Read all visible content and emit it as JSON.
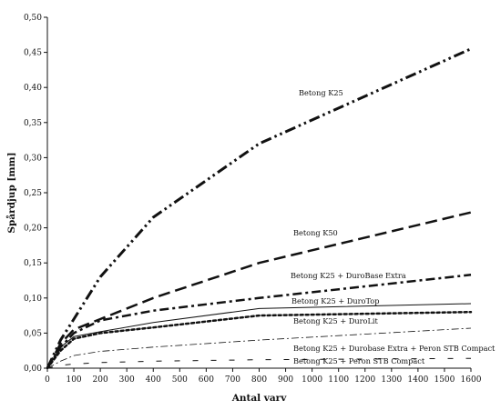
{
  "chart_data": {
    "type": "line",
    "title": "",
    "xlabel": "Antal varv",
    "ylabel": "Spårdjup [mm]",
    "xlim": [
      0,
      1600
    ],
    "ylim": [
      0,
      0.5
    ],
    "x_ticks": [
      "0",
      "100",
      "200",
      "300",
      "400",
      "500",
      "600",
      "700",
      "800",
      "900",
      "1000",
      "1100",
      "1200",
      "1300",
      "1400",
      "1500",
      "1600"
    ],
    "y_ticks": [
      "0,00",
      "0,05",
      "0,10",
      "0,15",
      "0,20",
      "0,25",
      "0,30",
      "0,35",
      "0,40",
      "0,45",
      "0,50"
    ],
    "grid": false,
    "legend": "inline labels",
    "series": [
      {
        "name": "Betong K25",
        "style": "dash-dot-dot",
        "width": 3,
        "x": [
          0,
          50,
          100,
          200,
          400,
          800,
          1600
        ],
        "y": [
          0,
          0.04,
          0.07,
          0.13,
          0.215,
          0.32,
          0.455
        ]
      },
      {
        "name": "Betong K50",
        "style": "long-dash",
        "width": 2.5,
        "x": [
          0,
          50,
          100,
          200,
          400,
          800,
          1600
        ],
        "y": [
          0,
          0.035,
          0.055,
          0.07,
          0.1,
          0.15,
          0.222
        ]
      },
      {
        "name": "Betong K25 + DuroBase Extra",
        "style": "dash-dot",
        "width": 2.5,
        "x": [
          0,
          50,
          100,
          200,
          400,
          800,
          1600
        ],
        "y": [
          0,
          0.03,
          0.05,
          0.068,
          0.082,
          0.1,
          0.133
        ]
      },
      {
        "name": "Betong K25 + DuroTop",
        "style": "solid",
        "width": 1,
        "x": [
          0,
          50,
          100,
          200,
          400,
          800,
          1600
        ],
        "y": [
          0,
          0.03,
          0.045,
          0.052,
          0.065,
          0.085,
          0.092
        ]
      },
      {
        "name": "Betong K25 + DuroLit",
        "style": "dotted",
        "width": 2.5,
        "x": [
          0,
          50,
          100,
          200,
          400,
          800,
          1600
        ],
        "y": [
          0,
          0.025,
          0.042,
          0.05,
          0.058,
          0.075,
          0.08
        ]
      },
      {
        "name": "Betong K25 + Durobase Extra + Peron STB Compact",
        "style": "thin-dash-dot",
        "width": 0.8,
        "x": [
          0,
          50,
          100,
          200,
          400,
          800,
          1600
        ],
        "y": [
          0,
          0.01,
          0.018,
          0.024,
          0.03,
          0.04,
          0.057
        ]
      },
      {
        "name": "Betong K25 + Peron STB Compact",
        "style": "sparse-dash",
        "width": 1,
        "x": [
          0,
          50,
          100,
          200,
          400,
          800,
          1600
        ],
        "y": [
          0,
          0.004,
          0.006,
          0.008,
          0.01,
          0.012,
          0.014
        ]
      }
    ]
  }
}
